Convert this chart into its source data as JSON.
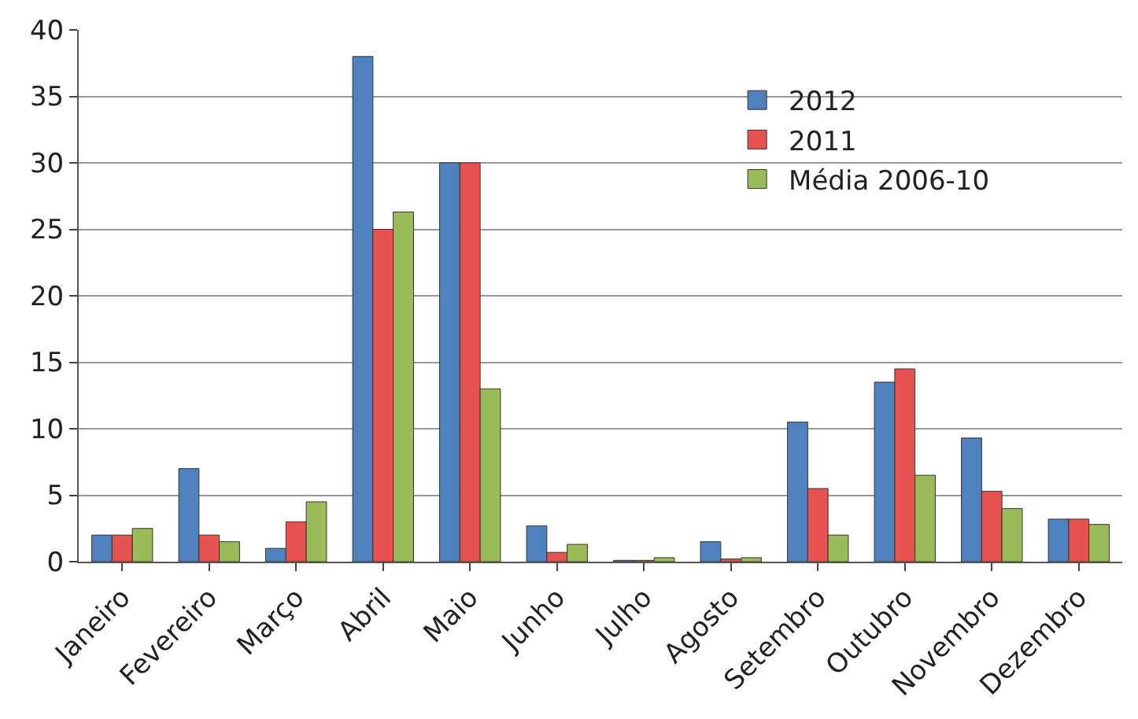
{
  "chart_data": {
    "type": "bar",
    "categories": [
      "Janeiro",
      "Fevereiro",
      "Março",
      "Abril",
      "Maio",
      "Junho",
      "Julho",
      "Agosto",
      "Setembro",
      "Outubro",
      "Novembro",
      "Dezembro"
    ],
    "series": [
      {
        "name": "2012",
        "color": "#4f81bd",
        "values": [
          2,
          7,
          1,
          38,
          30,
          2.7,
          0.1,
          1.5,
          10.5,
          13.5,
          9.3,
          3.2
        ]
      },
      {
        "name": "2011",
        "color": "#e8534f",
        "values": [
          2,
          2,
          3,
          25,
          30,
          0.7,
          0.1,
          0.2,
          5.5,
          14.5,
          5.3,
          3.2
        ]
      },
      {
        "name": "Média 2006-10",
        "color": "#9bbb59",
        "values": [
          2.5,
          1.5,
          4.5,
          26.3,
          13,
          1.3,
          0.3,
          0.3,
          2,
          6.5,
          4,
          2.8
        ]
      }
    ],
    "ylim": [
      0,
      40
    ],
    "yticks": [
      0,
      5,
      10,
      15,
      20,
      25,
      30,
      35,
      40
    ],
    "grid": "y",
    "legend": "top right"
  }
}
